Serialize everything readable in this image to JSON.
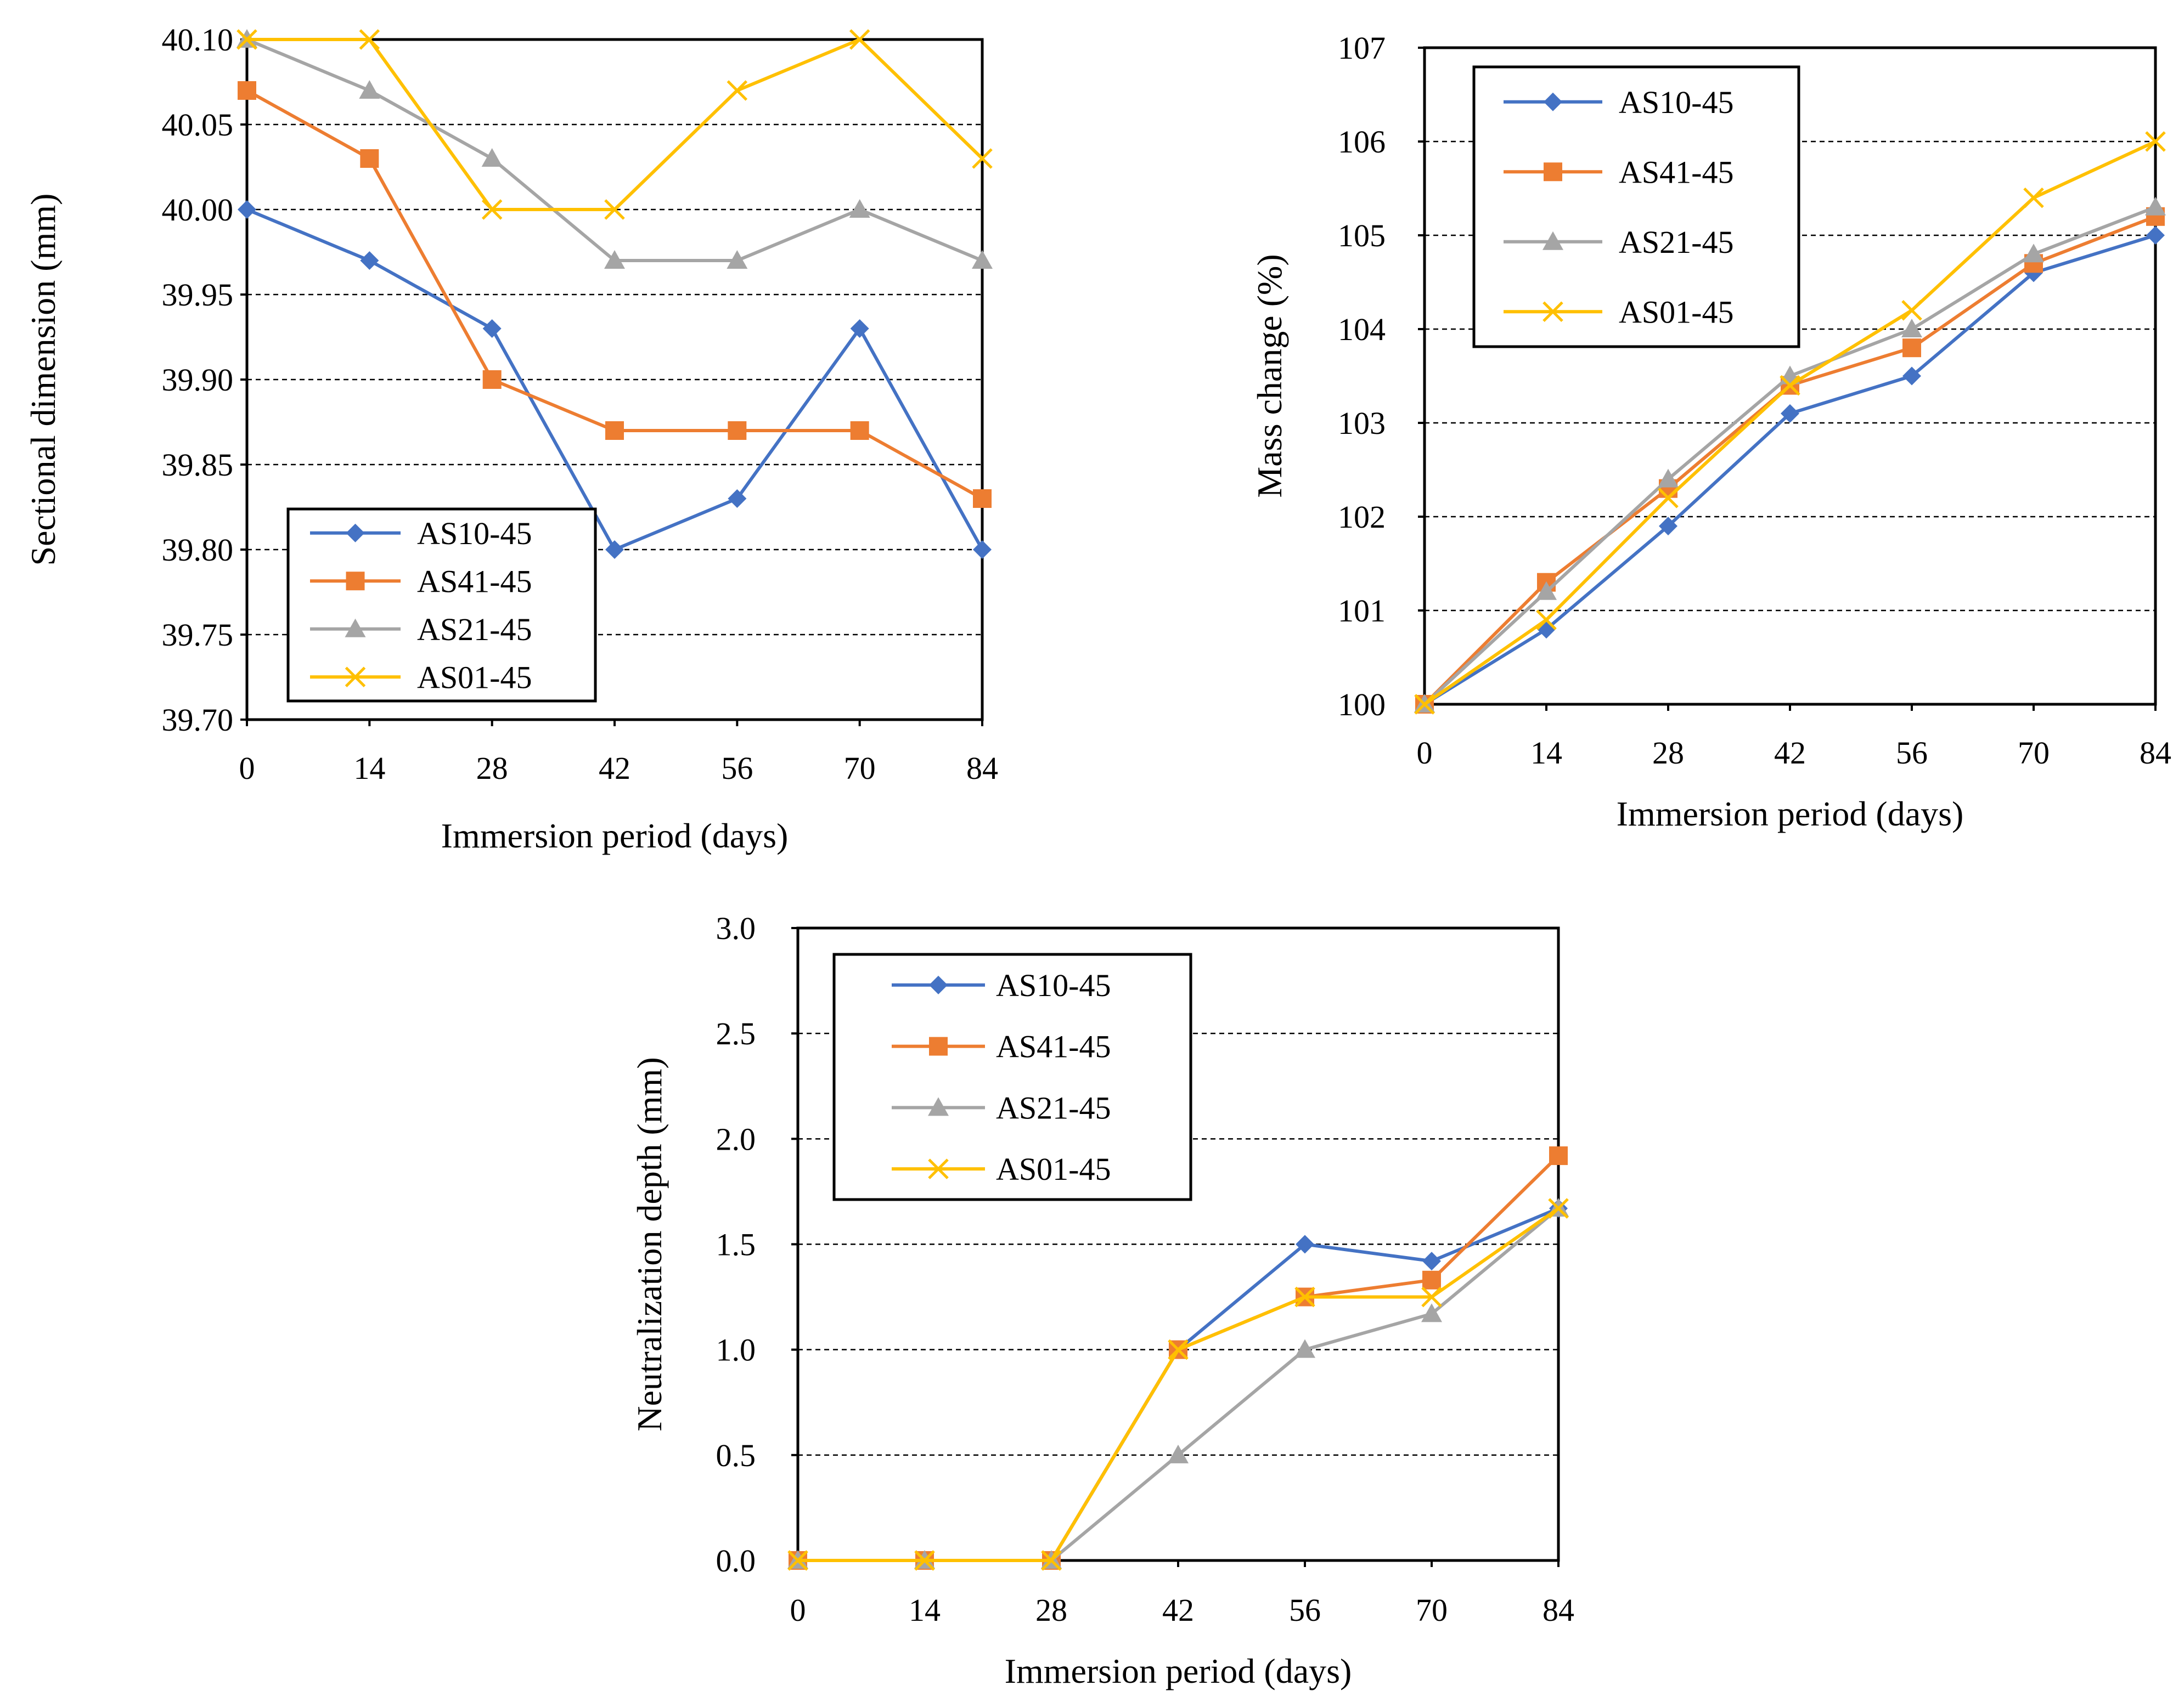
{
  "colors": {
    "AS10-45": "#4472C4",
    "AS41-45": "#ED7D31",
    "AS21-45": "#A5A5A5",
    "AS01-45": "#FFC000"
  },
  "chart_data": [
    {
      "type": "line",
      "title": "",
      "xlabel": "Immersion period (days)",
      "ylabel": "Sectional dimension (mm)",
      "x": [
        0,
        14,
        28,
        42,
        56,
        70,
        84
      ],
      "xticks": [
        "0",
        "14",
        "28",
        "42",
        "56",
        "70",
        "84"
      ],
      "ylim": [
        39.7,
        40.1
      ],
      "yticks": [
        "39.70",
        "39.75",
        "39.80",
        "39.85",
        "39.90",
        "39.95",
        "40.00",
        "40.05",
        "40.10"
      ],
      "grid": "horizontal dashed",
      "legend_position": "bottom-left",
      "series": [
        {
          "name": "AS10-45",
          "marker": "diamond",
          "values": [
            40.0,
            39.97,
            39.93,
            39.8,
            39.83,
            39.93,
            39.8
          ]
        },
        {
          "name": "AS41-45",
          "marker": "square",
          "values": [
            40.07,
            40.03,
            39.9,
            39.87,
            39.87,
            39.87,
            39.83
          ]
        },
        {
          "name": "AS21-45",
          "marker": "triangle",
          "values": [
            40.1,
            40.07,
            40.03,
            39.97,
            39.97,
            40.0,
            39.97
          ]
        },
        {
          "name": "AS01-45",
          "marker": "x",
          "values": [
            40.1,
            40.1,
            40.0,
            40.0,
            40.07,
            40.1,
            40.03
          ]
        }
      ]
    },
    {
      "type": "line",
      "title": "",
      "xlabel": "Immersion period (days)",
      "ylabel": "Mass change (%)",
      "x": [
        0,
        14,
        28,
        42,
        56,
        70,
        84
      ],
      "xticks": [
        "0",
        "14",
        "28",
        "42",
        "56",
        "70",
        "84"
      ],
      "ylim": [
        100,
        107
      ],
      "yticks": [
        "100",
        "101",
        "102",
        "103",
        "104",
        "105",
        "106",
        "107"
      ],
      "grid": "horizontal dashed",
      "legend_position": "top-left",
      "series": [
        {
          "name": "AS10-45",
          "marker": "diamond",
          "values": [
            100.0,
            100.8,
            101.9,
            103.1,
            103.5,
            104.6,
            105.0
          ]
        },
        {
          "name": "AS41-45",
          "marker": "square",
          "values": [
            100.0,
            101.3,
            102.3,
            103.4,
            103.8,
            104.7,
            105.2
          ]
        },
        {
          "name": "AS21-45",
          "marker": "triangle",
          "values": [
            100.0,
            101.2,
            102.4,
            103.5,
            104.0,
            104.8,
            105.3
          ]
        },
        {
          "name": "AS01-45",
          "marker": "x",
          "values": [
            100.0,
            100.9,
            102.2,
            103.4,
            104.2,
            105.4,
            106.0
          ]
        }
      ]
    },
    {
      "type": "line",
      "title": "",
      "xlabel": "Immersion period (days)",
      "ylabel": "Neutralization depth (mm)",
      "x": [
        0,
        14,
        28,
        42,
        56,
        70,
        84
      ],
      "xticks": [
        "0",
        "14",
        "28",
        "42",
        "56",
        "70",
        "84"
      ],
      "ylim": [
        0,
        3.0
      ],
      "yticks": [
        "0.0",
        "0.5",
        "1.0",
        "1.5",
        "2.0",
        "2.5",
        "3.0"
      ],
      "grid": "horizontal dashed",
      "legend_position": "top-left",
      "series": [
        {
          "name": "AS10-45",
          "marker": "diamond",
          "values": [
            0,
            0,
            0,
            1.0,
            1.5,
            1.42,
            1.67
          ]
        },
        {
          "name": "AS41-45",
          "marker": "square",
          "values": [
            0,
            0,
            0,
            1.0,
            1.25,
            1.33,
            1.92
          ]
        },
        {
          "name": "AS21-45",
          "marker": "triangle",
          "values": [
            0,
            0,
            0,
            0.5,
            1.0,
            1.17,
            1.67
          ]
        },
        {
          "name": "AS01-45",
          "marker": "x",
          "values": [
            0,
            0,
            0,
            1.0,
            1.25,
            1.25,
            1.67
          ]
        }
      ]
    }
  ]
}
